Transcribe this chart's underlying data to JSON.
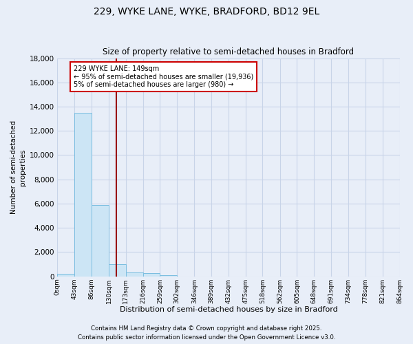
{
  "title1": "229, WYKE LANE, WYKE, BRADFORD, BD12 9EL",
  "title2": "Size of property relative to semi-detached houses in Bradford",
  "xlabel": "Distribution of semi-detached houses by size in Bradford",
  "ylabel": "Number of semi-detached\nproperties",
  "bar_color": "#cce5f5",
  "bar_edge_color": "#7abde0",
  "grid_color": "#c8d4e8",
  "background_color": "#e8eef8",
  "vline_x": 149,
  "vline_color": "#990000",
  "annotation_text": "229 WYKE LANE: 149sqm\n← 95% of semi-detached houses are smaller (19,936)\n5% of semi-detached houses are larger (980) →",
  "annotation_box_facecolor": "#ffffff",
  "annotation_box_edgecolor": "#cc0000",
  "bins": [
    0,
    43,
    86,
    130,
    173,
    216,
    259,
    302,
    346,
    389,
    432,
    475,
    518,
    562,
    605,
    648,
    691,
    734,
    778,
    821,
    864
  ],
  "counts": [
    200,
    13500,
    5900,
    980,
    300,
    250,
    100,
    0,
    0,
    0,
    0,
    0,
    0,
    0,
    0,
    0,
    0,
    0,
    0,
    0
  ],
  "ylim": [
    0,
    18000
  ],
  "yticks": [
    0,
    2000,
    4000,
    6000,
    8000,
    10000,
    12000,
    14000,
    16000,
    18000
  ],
  "footer1": "Contains HM Land Registry data © Crown copyright and database right 2025.",
  "footer2": "Contains public sector information licensed under the Open Government Licence v3.0."
}
